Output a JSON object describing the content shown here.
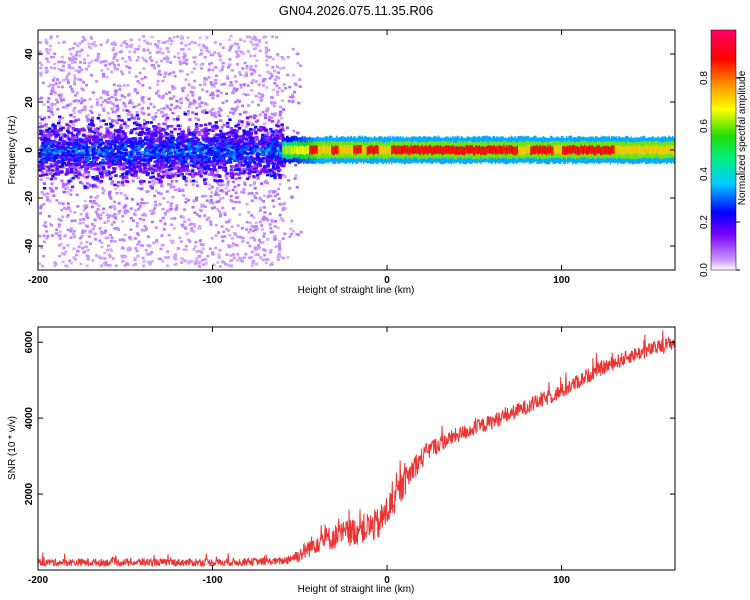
{
  "title": "GN04.2026.075.11.35.R06",
  "chart_data": [
    {
      "type": "heatmap",
      "name": "spectrogram",
      "xlabel": "Height of straight line (km)",
      "ylabel": "Frequency (Hz)",
      "xlim": [
        -200,
        165
      ],
      "ylim": [
        -50,
        50
      ],
      "xticks": [
        -200,
        -100,
        0,
        100
      ],
      "yticks": [
        -40,
        -20,
        0,
        20,
        40
      ],
      "colorbar": {
        "label": "Normalized spectral amplitude",
        "range": [
          0,
          1
        ],
        "ticks": [
          "0.0",
          "0.2",
          "0.4",
          "0.6",
          "0.8"
        ],
        "colors": [
          "#ffffff",
          "#cc99ff",
          "#7700ff",
          "#0000ff",
          "#00ccff",
          "#00ee88",
          "#22dd00",
          "#ffff00",
          "#ff8800",
          "#ff0000",
          "#ff0066"
        ]
      },
      "band": {
        "noise_region_x": [
          -200,
          -60
        ],
        "noise_spread_hz": 48,
        "core_spread_hz": 8,
        "signal_center_hz": 0,
        "signal_halfwidth_hz": 2.5,
        "peak_segments": [
          [
            -45,
            -40
          ],
          [
            -32,
            -28
          ],
          [
            -20,
            -15
          ],
          [
            -12,
            -5
          ],
          [
            2,
            75
          ],
          [
            82,
            95
          ],
          [
            100,
            130
          ]
        ],
        "intensity": 0.88
      }
    },
    {
      "type": "line",
      "name": "snr",
      "xlabel": "Height of straight line (km)",
      "ylabel": "SNR (10 * v/v)",
      "xlim": [
        -200,
        165
      ],
      "ylim": [
        0,
        6400
      ],
      "xticks": [
        -200,
        -100,
        0,
        100
      ],
      "yticks": [
        2000,
        4000,
        6000
      ],
      "color": "#ee3333",
      "trend": {
        "x": [
          -200,
          -150,
          -100,
          -60,
          -50,
          -40,
          -20,
          -5,
          5,
          15,
          25,
          40,
          60,
          80,
          100,
          120,
          140,
          165
        ],
        "y": [
          200,
          200,
          200,
          230,
          400,
          750,
          1000,
          1200,
          1900,
          2700,
          3200,
          3550,
          3900,
          4300,
          4700,
          5250,
          5650,
          6000
        ]
      },
      "noise_amplitude": [
        {
          "x": -200,
          "amp": 200
        },
        {
          "x": -60,
          "amp": 200
        },
        {
          "x": -40,
          "amp": 600
        },
        {
          "x": 0,
          "amp": 900
        },
        {
          "x": 30,
          "amp": 420
        },
        {
          "x": 165,
          "amp": 380
        }
      ]
    }
  ]
}
